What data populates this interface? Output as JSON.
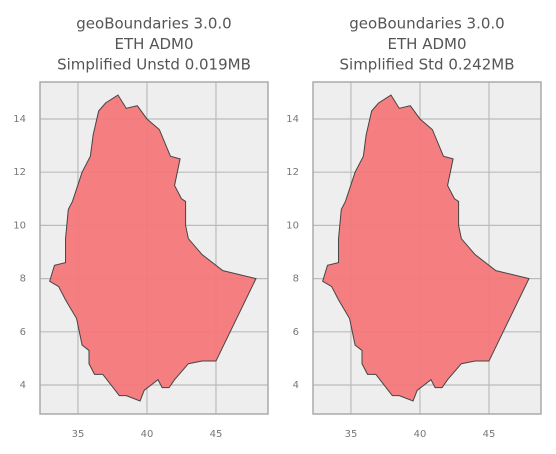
{
  "chart_data": [
    {
      "type": "map",
      "title": [
        "geoBoundaries 3.0.0",
        "ETH ADM0",
        "Simplified Unstd 0.019MB"
      ],
      "color": "#f4777a",
      "grid": true,
      "xlim": [
        32.25,
        48.77
      ],
      "ylim": [
        2.91,
        15.39
      ],
      "xticks": [
        35,
        40,
        45
      ],
      "yticks": [
        4,
        6,
        8,
        10,
        12,
        14
      ],
      "x": [
        36.5,
        37.0,
        37.9,
        38.5,
        39.3,
        40.0,
        40.9,
        41.7,
        42.4,
        42.0,
        42.5,
        42.8,
        42.8,
        43.0,
        44.0,
        45.5,
        47.9,
        45.0,
        44.0,
        43.0,
        42.0,
        41.6,
        41.1,
        40.8,
        39.8,
        39.5,
        38.5,
        38.0,
        36.8,
        36.2,
        35.8,
        35.8,
        35.3,
        34.9,
        34.1,
        33.6,
        32.95,
        33.3,
        34.1,
        34.1,
        34.3,
        34.6,
        35.3,
        35.9,
        36.1,
        36.5
      ],
      "y": [
        14.3,
        14.6,
        14.9,
        14.4,
        14.5,
        14.0,
        13.6,
        12.6,
        12.5,
        11.5,
        11.0,
        10.9,
        10.0,
        9.5,
        8.9,
        8.3,
        8.0,
        4.9,
        4.9,
        4.8,
        4.2,
        3.9,
        3.9,
        4.2,
        3.8,
        3.4,
        3.6,
        3.6,
        4.4,
        4.4,
        4.8,
        5.3,
        5.5,
        6.5,
        7.2,
        7.7,
        7.9,
        8.5,
        8.6,
        9.5,
        10.6,
        10.9,
        12.0,
        12.6,
        13.4,
        14.3
      ]
    },
    {
      "type": "map",
      "title": [
        "geoBoundaries 3.0.0",
        "ETH ADM0",
        "Simplified Std 0.242MB"
      ],
      "color": "#f4777a",
      "grid": true,
      "xlim": [
        32.25,
        48.77
      ],
      "ylim": [
        2.91,
        15.39
      ],
      "xticks": [
        35,
        40,
        45
      ],
      "yticks": [
        4,
        6,
        8,
        10,
        12,
        14
      ],
      "x": [
        36.5,
        37.0,
        37.9,
        38.5,
        39.3,
        40.0,
        40.9,
        41.7,
        42.4,
        42.0,
        42.5,
        42.8,
        42.8,
        43.0,
        44.0,
        45.5,
        47.9,
        45.0,
        44.0,
        43.0,
        42.0,
        41.6,
        41.1,
        40.8,
        39.8,
        39.5,
        38.5,
        38.0,
        36.8,
        36.2,
        35.8,
        35.8,
        35.3,
        34.9,
        34.1,
        33.6,
        32.95,
        33.3,
        34.1,
        34.1,
        34.3,
        34.6,
        35.3,
        35.9,
        36.1,
        36.5
      ],
      "y": [
        14.3,
        14.6,
        14.9,
        14.4,
        14.5,
        14.0,
        13.6,
        12.6,
        12.5,
        11.5,
        11.0,
        10.9,
        10.0,
        9.5,
        8.9,
        8.3,
        8.0,
        4.9,
        4.9,
        4.8,
        4.2,
        3.9,
        3.9,
        4.2,
        3.8,
        3.4,
        3.6,
        3.6,
        4.4,
        4.4,
        4.8,
        5.3,
        5.5,
        6.5,
        7.2,
        7.7,
        7.9,
        8.5,
        8.6,
        9.5,
        10.6,
        10.9,
        12.0,
        12.6,
        13.4,
        14.3
      ]
    }
  ]
}
